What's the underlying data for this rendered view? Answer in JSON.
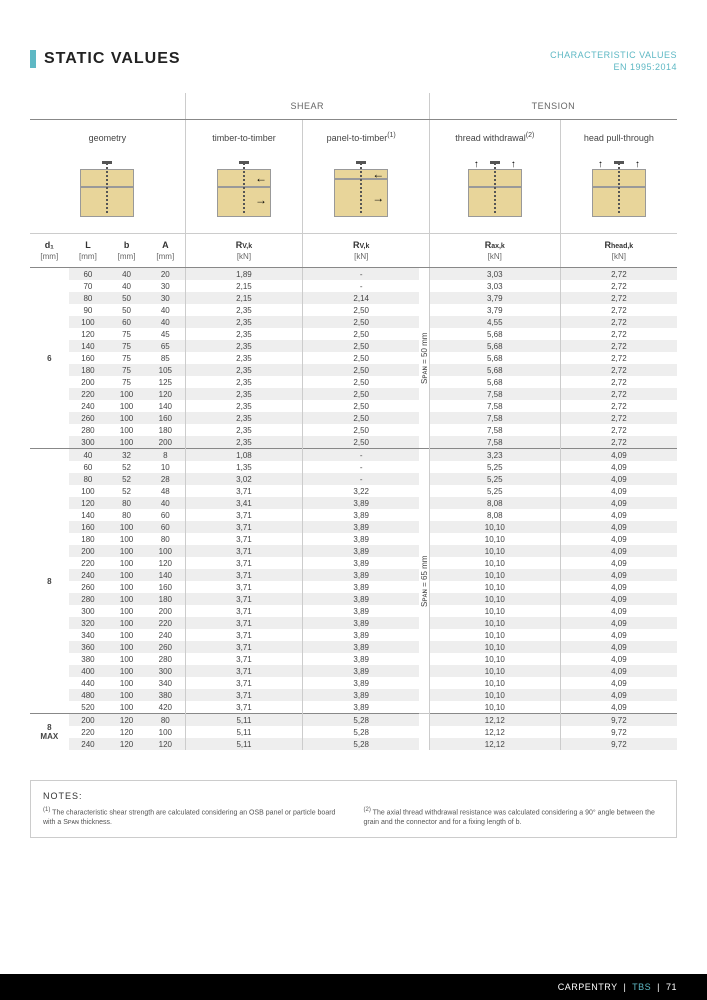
{
  "header": {
    "title": "STATIC VALUES",
    "subtitle_line1": "CHARACTERISTIC VALUES",
    "subtitle_line2": "EN 1995:2014"
  },
  "colors": {
    "accent": "#5eb8c4",
    "wood": "#e8d59a",
    "alt_row": "#eeeeee",
    "text": "#444444",
    "border": "#cccccc",
    "bg": "#ffffff"
  },
  "table": {
    "top_headers": {
      "shear": "SHEAR",
      "tension": "TENSION"
    },
    "second_headers": {
      "geometry": "geometry",
      "timber": "timber-to-timber",
      "panel": "panel-to-timber",
      "panel_sup": "(1)",
      "thread": "thread withdrawal",
      "thread_sup": "(2)",
      "head": "head pull-through"
    },
    "col_heads": {
      "d1": "d₁",
      "L": "L",
      "b": "b",
      "A": "A",
      "rvk1": "R",
      "rvk1_sub": "V,k",
      "rvk2": "R",
      "rvk2_sub": "V,k",
      "rax": "R",
      "rax_sub": "ax,k",
      "rhead": "R",
      "rhead_sub": "head,k"
    },
    "units": {
      "mm": "[mm]",
      "kn": "[kN]"
    },
    "span_labels": {
      "g6": "Sᴘᴀɴ = 50 mm",
      "g8": "Sᴘᴀɴ = 65 mm"
    },
    "groups": [
      {
        "d1": "6",
        "span_label_key": "g6",
        "rows": [
          {
            "L": "60",
            "b": "40",
            "A": "20",
            "rvk1": "1,89",
            "rvk2": "-",
            "rax": "3,03",
            "rhead": "2,72"
          },
          {
            "L": "70",
            "b": "40",
            "A": "30",
            "rvk1": "2,15",
            "rvk2": "-",
            "rax": "3,03",
            "rhead": "2,72"
          },
          {
            "L": "80",
            "b": "50",
            "A": "30",
            "rvk1": "2,15",
            "rvk2": "2,14",
            "rax": "3,79",
            "rhead": "2,72"
          },
          {
            "L": "90",
            "b": "50",
            "A": "40",
            "rvk1": "2,35",
            "rvk2": "2,50",
            "rax": "3,79",
            "rhead": "2,72"
          },
          {
            "L": "100",
            "b": "60",
            "A": "40",
            "rvk1": "2,35",
            "rvk2": "2,50",
            "rax": "4,55",
            "rhead": "2,72"
          },
          {
            "L": "120",
            "b": "75",
            "A": "45",
            "rvk1": "2,35",
            "rvk2": "2,50",
            "rax": "5,68",
            "rhead": "2,72"
          },
          {
            "L": "140",
            "b": "75",
            "A": "65",
            "rvk1": "2,35",
            "rvk2": "2,50",
            "rax": "5,68",
            "rhead": "2,72"
          },
          {
            "L": "160",
            "b": "75",
            "A": "85",
            "rvk1": "2,35",
            "rvk2": "2,50",
            "rax": "5,68",
            "rhead": "2,72"
          },
          {
            "L": "180",
            "b": "75",
            "A": "105",
            "rvk1": "2,35",
            "rvk2": "2,50",
            "rax": "5,68",
            "rhead": "2,72"
          },
          {
            "L": "200",
            "b": "75",
            "A": "125",
            "rvk1": "2,35",
            "rvk2": "2,50",
            "rax": "5,68",
            "rhead": "2,72"
          },
          {
            "L": "220",
            "b": "100",
            "A": "120",
            "rvk1": "2,35",
            "rvk2": "2,50",
            "rax": "7,58",
            "rhead": "2,72"
          },
          {
            "L": "240",
            "b": "100",
            "A": "140",
            "rvk1": "2,35",
            "rvk2": "2,50",
            "rax": "7,58",
            "rhead": "2,72"
          },
          {
            "L": "260",
            "b": "100",
            "A": "160",
            "rvk1": "2,35",
            "rvk2": "2,50",
            "rax": "7,58",
            "rhead": "2,72"
          },
          {
            "L": "280",
            "b": "100",
            "A": "180",
            "rvk1": "2,35",
            "rvk2": "2,50",
            "rax": "7,58",
            "rhead": "2,72"
          },
          {
            "L": "300",
            "b": "100",
            "A": "200",
            "rvk1": "2,35",
            "rvk2": "2,50",
            "rax": "7,58",
            "rhead": "2,72"
          }
        ]
      },
      {
        "d1": "8",
        "span_label_key": "g8",
        "rows": [
          {
            "L": "40",
            "b": "32",
            "A": "8",
            "rvk1": "1,08",
            "rvk2": "-",
            "rax": "3,23",
            "rhead": "4,09"
          },
          {
            "L": "60",
            "b": "52",
            "A": "10",
            "rvk1": "1,35",
            "rvk2": "-",
            "rax": "5,25",
            "rhead": "4,09"
          },
          {
            "L": "80",
            "b": "52",
            "A": "28",
            "rvk1": "3,02",
            "rvk2": "-",
            "rax": "5,25",
            "rhead": "4,09"
          },
          {
            "L": "100",
            "b": "52",
            "A": "48",
            "rvk1": "3,71",
            "rvk2": "3,22",
            "rax": "5,25",
            "rhead": "4,09"
          },
          {
            "L": "120",
            "b": "80",
            "A": "40",
            "rvk1": "3,41",
            "rvk2": "3,89",
            "rax": "8,08",
            "rhead": "4,09"
          },
          {
            "L": "140",
            "b": "80",
            "A": "60",
            "rvk1": "3,71",
            "rvk2": "3,89",
            "rax": "8,08",
            "rhead": "4,09"
          },
          {
            "L": "160",
            "b": "100",
            "A": "60",
            "rvk1": "3,71",
            "rvk2": "3,89",
            "rax": "10,10",
            "rhead": "4,09"
          },
          {
            "L": "180",
            "b": "100",
            "A": "80",
            "rvk1": "3,71",
            "rvk2": "3,89",
            "rax": "10,10",
            "rhead": "4,09"
          },
          {
            "L": "200",
            "b": "100",
            "A": "100",
            "rvk1": "3,71",
            "rvk2": "3,89",
            "rax": "10,10",
            "rhead": "4,09"
          },
          {
            "L": "220",
            "b": "100",
            "A": "120",
            "rvk1": "3,71",
            "rvk2": "3,89",
            "rax": "10,10",
            "rhead": "4,09"
          },
          {
            "L": "240",
            "b": "100",
            "A": "140",
            "rvk1": "3,71",
            "rvk2": "3,89",
            "rax": "10,10",
            "rhead": "4,09"
          },
          {
            "L": "260",
            "b": "100",
            "A": "160",
            "rvk1": "3,71",
            "rvk2": "3,89",
            "rax": "10,10",
            "rhead": "4,09"
          },
          {
            "L": "280",
            "b": "100",
            "A": "180",
            "rvk1": "3,71",
            "rvk2": "3,89",
            "rax": "10,10",
            "rhead": "4,09"
          },
          {
            "L": "300",
            "b": "100",
            "A": "200",
            "rvk1": "3,71",
            "rvk2": "3,89",
            "rax": "10,10",
            "rhead": "4,09"
          },
          {
            "L": "320",
            "b": "100",
            "A": "220",
            "rvk1": "3,71",
            "rvk2": "3,89",
            "rax": "10,10",
            "rhead": "4,09"
          },
          {
            "L": "340",
            "b": "100",
            "A": "240",
            "rvk1": "3,71",
            "rvk2": "3,89",
            "rax": "10,10",
            "rhead": "4,09"
          },
          {
            "L": "360",
            "b": "100",
            "A": "260",
            "rvk1": "3,71",
            "rvk2": "3,89",
            "rax": "10,10",
            "rhead": "4,09"
          },
          {
            "L": "380",
            "b": "100",
            "A": "280",
            "rvk1": "3,71",
            "rvk2": "3,89",
            "rax": "10,10",
            "rhead": "4,09"
          },
          {
            "L": "400",
            "b": "100",
            "A": "300",
            "rvk1": "3,71",
            "rvk2": "3,89",
            "rax": "10,10",
            "rhead": "4,09"
          },
          {
            "L": "440",
            "b": "100",
            "A": "340",
            "rvk1": "3,71",
            "rvk2": "3,89",
            "rax": "10,10",
            "rhead": "4,09"
          },
          {
            "L": "480",
            "b": "100",
            "A": "380",
            "rvk1": "3,71",
            "rvk2": "3,89",
            "rax": "10,10",
            "rhead": "4,09"
          },
          {
            "L": "520",
            "b": "100",
            "A": "420",
            "rvk1": "3,71",
            "rvk2": "3,89",
            "rax": "10,10",
            "rhead": "4,09"
          }
        ]
      },
      {
        "d1": "8\nMAX",
        "span_label_key": null,
        "rows": [
          {
            "L": "200",
            "b": "120",
            "A": "80",
            "rvk1": "5,11",
            "rvk2": "5,28",
            "rax": "12,12",
            "rhead": "9,72"
          },
          {
            "L": "220",
            "b": "120",
            "A": "100",
            "rvk1": "5,11",
            "rvk2": "5,28",
            "rax": "12,12",
            "rhead": "9,72"
          },
          {
            "L": "240",
            "b": "120",
            "A": "120",
            "rvk1": "5,11",
            "rvk2": "5,28",
            "rax": "12,12",
            "rhead": "9,72"
          }
        ]
      }
    ]
  },
  "notes": {
    "title": "NOTES:",
    "n1_sup": "(1)",
    "n1": "The characteristic shear strength are calculated considering an OSB panel or particle board with a Sᴘᴀɴ thickness.",
    "n2_sup": "(2)",
    "n2": "The axial thread withdrawal resistance was calculated considering a 90° angle between the grain and the connector and for a fixing length of b."
  },
  "footer": {
    "left": "CARPENTRY",
    "mid": "TBS",
    "page": "71"
  }
}
